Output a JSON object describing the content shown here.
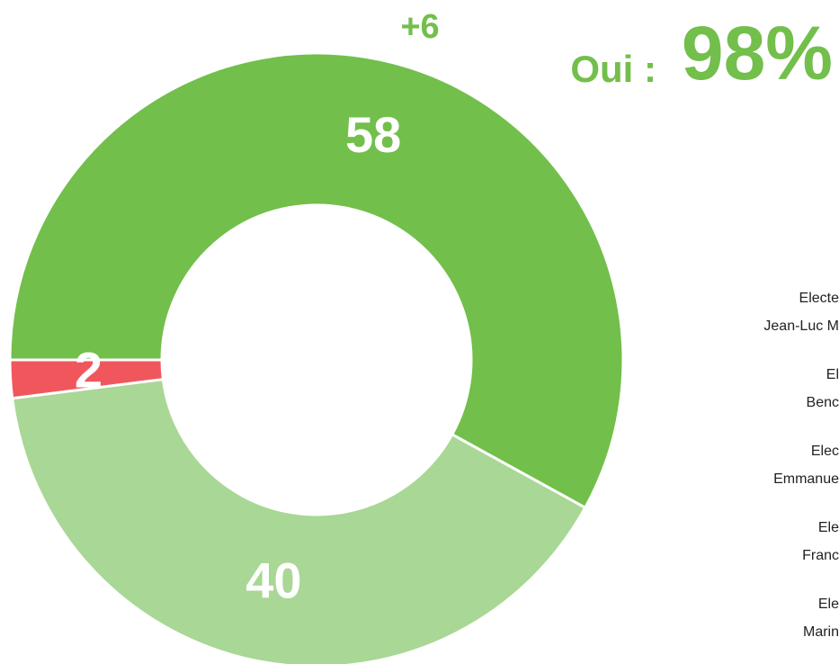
{
  "chart_data": {
    "type": "pie",
    "donut": true,
    "values": [
      58,
      40,
      2
    ],
    "colors": [
      "#72bf4b",
      "#a9d795",
      "#f0575d"
    ],
    "annotation": "+6",
    "headline_label": "Oui :",
    "headline_value": "98%",
    "legend_fragments": [
      [
        "Electe",
        "Jean-Luc M"
      ],
      [
        "El",
        "Benc"
      ],
      [
        "Elec",
        "Emmanue"
      ],
      [
        "Ele",
        "Franc"
      ],
      [
        "Ele",
        "Marin"
      ]
    ]
  }
}
